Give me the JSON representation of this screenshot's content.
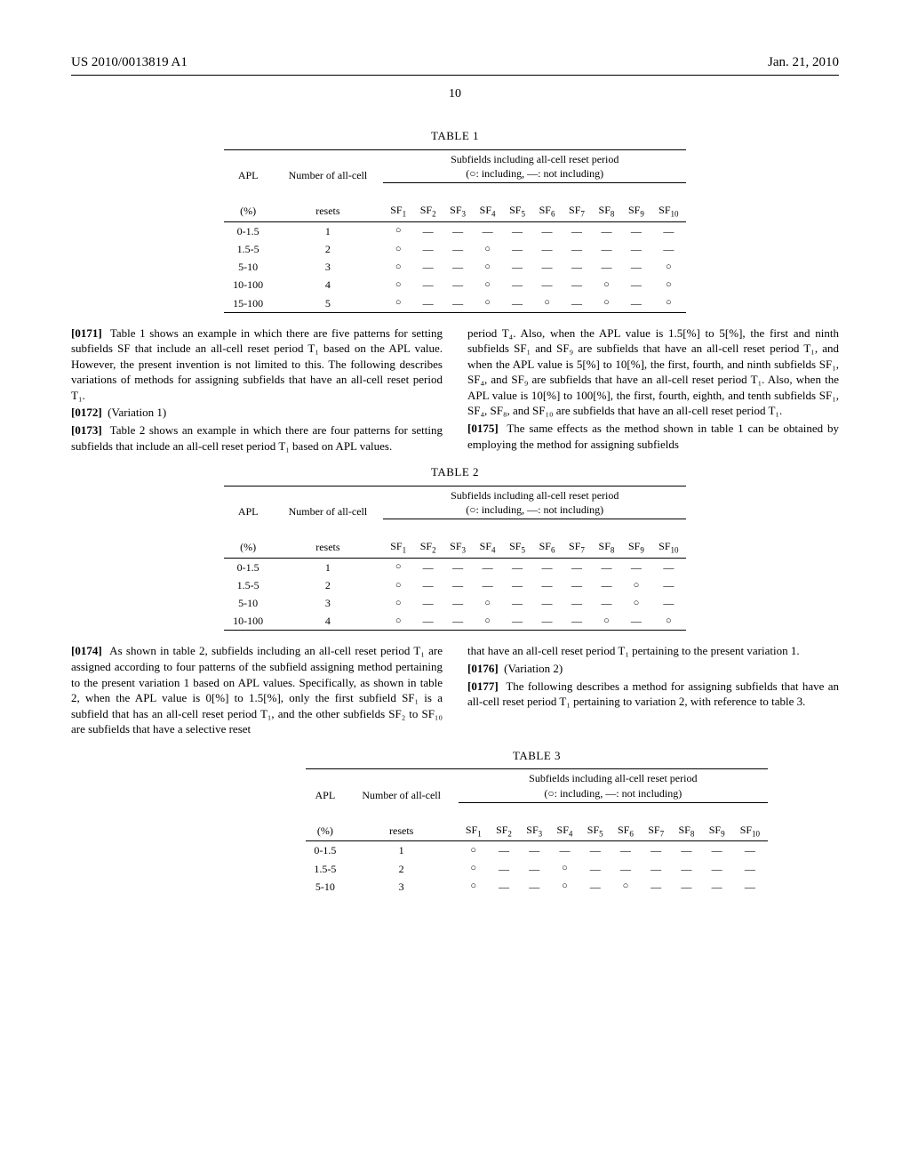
{
  "header": {
    "left": "US 2010/0013819 A1",
    "right": "Jan. 21, 2010",
    "page": "10"
  },
  "table1": {
    "title": "TABLE 1",
    "h_apl": "APL",
    "h_num": "Number of all-cell",
    "h_span": "Subfields including all-cell reset period",
    "h_legend": "(○: including, —: not including)",
    "h_pct": "(%)",
    "h_resets": "resets",
    "sf": [
      "SF",
      "SF",
      "SF",
      "SF",
      "SF",
      "SF",
      "SF",
      "SF",
      "SF",
      "SF"
    ],
    "sfsub": [
      "1",
      "2",
      "3",
      "4",
      "5",
      "6",
      "7",
      "8",
      "9",
      "10"
    ],
    "rows": [
      {
        "apl": "0-1.5",
        "n": "1",
        "c": [
          "○",
          "—",
          "—",
          "—",
          "—",
          "—",
          "—",
          "—",
          "—",
          "—"
        ]
      },
      {
        "apl": "1.5-5",
        "n": "2",
        "c": [
          "○",
          "—",
          "—",
          "○",
          "—",
          "—",
          "—",
          "—",
          "—",
          "—"
        ]
      },
      {
        "apl": "5-10",
        "n": "3",
        "c": [
          "○",
          "—",
          "—",
          "○",
          "—",
          "—",
          "—",
          "—",
          "—",
          "○"
        ]
      },
      {
        "apl": "10-100",
        "n": "4",
        "c": [
          "○",
          "—",
          "—",
          "○",
          "—",
          "—",
          "—",
          "○",
          "—",
          "○"
        ]
      },
      {
        "apl": "15-100",
        "n": "5",
        "c": [
          "○",
          "—",
          "—",
          "○",
          "—",
          "○",
          "—",
          "○",
          "—",
          "○"
        ]
      }
    ]
  },
  "para1": {
    "left": [
      {
        "n": "[0171]",
        "t": "Table 1 shows an example in which there are five patterns for setting subfields SF that include an all-cell reset period T₁ based on the APL value. However, the present invention is not limited to this. The following describes variations of methods for assigning subfields that have an all-cell reset period T₁."
      },
      {
        "n": "[0172]",
        "t": "(Variation 1)"
      },
      {
        "n": "[0173]",
        "t": "Table 2 shows an example in which there are four patterns for setting subfields that include an all-cell reset period T₁ based on APL values."
      }
    ],
    "right": [
      {
        "n": "",
        "t": "period T₄. Also, when the APL value is 1.5[%] to 5[%], the first and ninth subfields SF₁ and SF₉ are subfields that have an all-cell reset period T₁, and when the APL value is 5[%] to 10[%], the first, fourth, and ninth subfields SF₁, SF₄, and SF₉ are subfields that have an all-cell reset period T₁. Also, when the APL value is 10[%] to 100[%], the first, fourth, eighth, and tenth subfields SF₁, SF₄, SF₈, and SF₁₀ are subfields that have an all-cell reset period T₁."
      },
      {
        "n": "[0175]",
        "t": "The same effects as the method shown in table 1 can be obtained by employing the method for assigning subfields"
      }
    ]
  },
  "table2": {
    "title": "TABLE 2",
    "rows": [
      {
        "apl": "0-1.5",
        "n": "1",
        "c": [
          "○",
          "—",
          "—",
          "—",
          "—",
          "—",
          "—",
          "—",
          "—",
          "—"
        ]
      },
      {
        "apl": "1.5-5",
        "n": "2",
        "c": [
          "○",
          "—",
          "—",
          "—",
          "—",
          "—",
          "—",
          "—",
          "○",
          "—"
        ]
      },
      {
        "apl": "5-10",
        "n": "3",
        "c": [
          "○",
          "—",
          "—",
          "○",
          "—",
          "—",
          "—",
          "—",
          "○",
          "—"
        ]
      },
      {
        "apl": "10-100",
        "n": "4",
        "c": [
          "○",
          "—",
          "—",
          "○",
          "—",
          "—",
          "—",
          "○",
          "—",
          "○"
        ]
      }
    ]
  },
  "para2": {
    "left": [
      {
        "n": "[0174]",
        "t": "As shown in table 2, subfields including an all-cell reset period T₁ are assigned according to four patterns of the subfield assigning method pertaining to the present variation 1 based on APL values. Specifically, as shown in table 2, when the APL value is 0[%] to 1.5[%], only the first subfield SF₁ is a subfield that has an all-cell reset period T₁, and the other subfields SF₂ to SF₁₀ are subfields that have a selective reset"
      }
    ],
    "right": [
      {
        "n": "",
        "t": "that have an all-cell reset period T₁ pertaining to the present variation 1."
      },
      {
        "n": "[0176]",
        "t": "(Variation 2)"
      },
      {
        "n": "[0177]",
        "t": "The following describes a method for assigning subfields that have an all-cell reset period T₁ pertaining to variation 2, with reference to table 3."
      }
    ]
  },
  "table3": {
    "title": "TABLE 3",
    "rows": [
      {
        "apl": "0-1.5",
        "n": "1",
        "c": [
          "○",
          "—",
          "—",
          "—",
          "—",
          "—",
          "—",
          "—",
          "—",
          "—"
        ]
      },
      {
        "apl": "1.5-5",
        "n": "2",
        "c": [
          "○",
          "—",
          "—",
          "○",
          "—",
          "—",
          "—",
          "—",
          "—",
          "—"
        ]
      },
      {
        "apl": "5-10",
        "n": "3",
        "c": [
          "○",
          "—",
          "—",
          "○",
          "—",
          "○",
          "—",
          "—",
          "—",
          "—"
        ]
      }
    ]
  }
}
